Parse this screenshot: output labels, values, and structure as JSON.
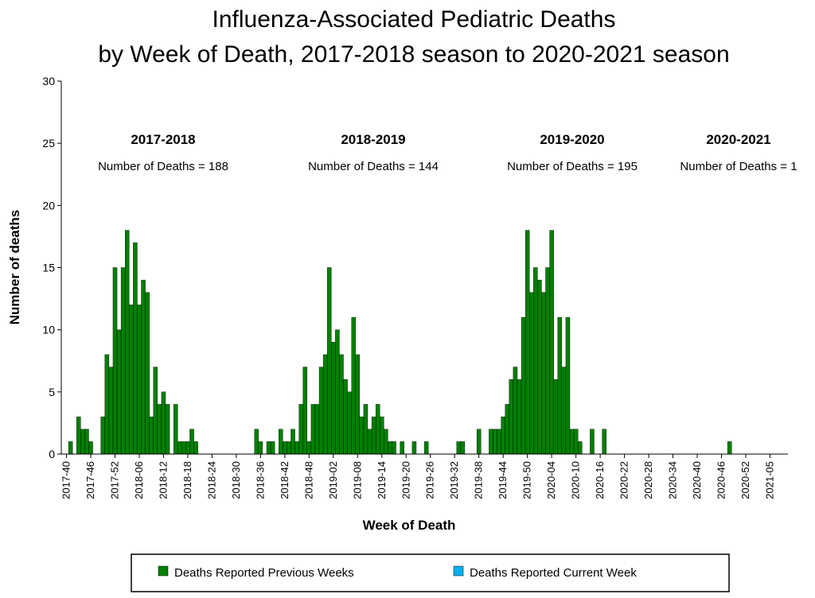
{
  "chart_data": {
    "type": "bar",
    "title_line1": "Influenza-Associated Pediatric Deaths",
    "title_line2": "by Week of Death, 2017-2018 season to 2020-2021 season",
    "xlabel": "Week of Death",
    "ylabel": "Number of deaths",
    "ylim": [
      0,
      30
    ],
    "yticks": [
      0,
      5,
      10,
      15,
      20,
      25,
      30
    ],
    "grid": false,
    "legend_position": "bottom",
    "colors": {
      "previous": "#008000",
      "current": "#00b0f0"
    },
    "x_tick_labels": [
      "2017-40",
      "2017-46",
      "2017-52",
      "2018-06",
      "2018-12",
      "2018-18",
      "2018-24",
      "2018-30",
      "2018-36",
      "2018-42",
      "2018-48",
      "2019-02",
      "2019-08",
      "2019-14",
      "2019-20",
      "2019-26",
      "2019-32",
      "2019-38",
      "2019-44",
      "2019-50",
      "2020-04",
      "2020-10",
      "2020-16",
      "2020-22",
      "2020-28",
      "2020-34",
      "2020-40",
      "2020-46",
      "2020-52",
      "2021-05"
    ],
    "seasons": [
      {
        "label": "2017-2018",
        "count_text": "Number of Deaths = 188"
      },
      {
        "label": "2018-2019",
        "count_text": "Number of Deaths = 144"
      },
      {
        "label": "2019-2020",
        "count_text": "Number of Deaths = 195"
      },
      {
        "label": "2020-2021",
        "count_text": "Number of Deaths = 1"
      }
    ],
    "series": [
      {
        "name": "Deaths Reported Previous Weeks",
        "color": "#008000",
        "values": [
          0,
          1,
          0,
          3,
          2,
          2,
          1,
          0,
          0,
          3,
          8,
          7,
          15,
          10,
          15,
          18,
          12,
          17,
          12,
          14,
          13,
          3,
          7,
          4,
          5,
          4,
          0,
          4,
          1,
          1,
          1,
          2,
          1,
          0,
          0,
          0,
          0,
          0,
          0,
          0,
          0,
          0,
          0,
          0,
          0,
          0,
          0,
          2,
          1,
          0,
          1,
          1,
          0,
          2,
          1,
          1,
          2,
          1,
          4,
          7,
          1,
          4,
          4,
          7,
          8,
          15,
          9,
          10,
          8,
          6,
          5,
          11,
          8,
          3,
          4,
          2,
          3,
          4,
          3,
          2,
          1,
          1,
          0,
          1,
          0,
          0,
          1,
          0,
          0,
          1,
          0,
          0,
          0,
          0,
          0,
          0,
          0,
          1,
          1,
          0,
          0,
          0,
          2,
          0,
          0,
          2,
          2,
          2,
          3,
          4,
          6,
          7,
          6,
          11,
          18,
          13,
          15,
          14,
          13,
          15,
          18,
          6,
          11,
          7,
          11,
          2,
          2,
          1,
          0,
          0,
          2,
          0,
          0,
          2,
          0,
          0,
          0,
          0,
          0,
          0,
          0,
          0,
          0,
          0,
          0,
          0,
          0,
          0,
          0,
          0,
          0,
          0,
          0,
          0,
          0,
          0,
          0,
          0,
          0,
          0,
          0,
          0,
          0,
          0,
          0,
          0,
          0,
          0,
          0,
          0,
          0,
          0,
          0,
          0,
          0,
          0,
          0,
          0,
          0,
          0,
          0,
          0,
          0,
          0,
          0,
          0,
          0,
          0,
          0,
          0,
          0,
          0,
          0
        ]
      },
      {
        "name": "Deaths Reported Current Week",
        "color": "#00b0f0",
        "values": []
      }
    ],
    "extra_points": [
      {
        "label": "2020-48",
        "value": 1
      }
    ]
  }
}
